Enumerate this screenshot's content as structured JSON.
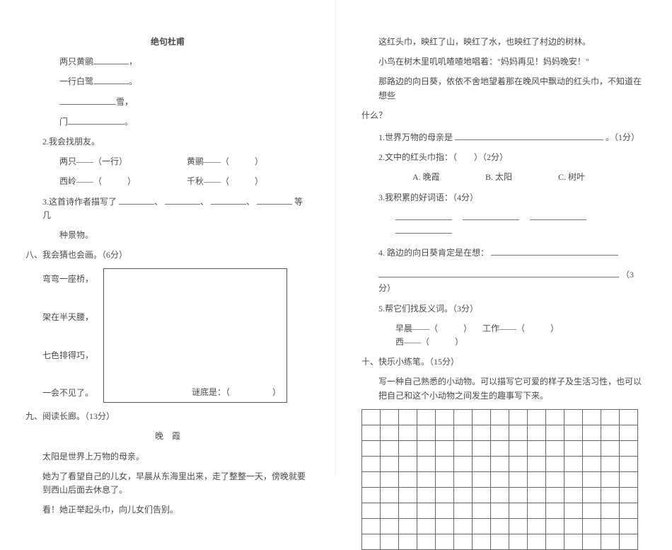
{
  "left": {
    "poem_title": "绝句杜甫",
    "poem_l1a": "两只黄鹂",
    "poem_l1b": "，",
    "poem_l2a": "一行白鹭",
    "poem_l2b": "。",
    "poem_l3b": "雪，",
    "poem_l4a": "门",
    "poem_l4b": "。",
    "q2_title": "2.我会找朋友。",
    "pair1a": "两只——（一行）",
    "pair1b": "黄鹂——（　　　）",
    "pair2a": "西岭——（　　　）",
    "pair2b": "千秋——（　　　）",
    "q3a": "3.这首诗作者描写了",
    "q3b": "等几",
    "q3c": "种景物。",
    "s8_title": "八、我会猜也会画。（6分）",
    "s8_l1": "弯弯一座桥，",
    "s8_l2": "架在半天腰，",
    "s8_l3": "七色排得巧，",
    "s8_l4": "一会不见了。",
    "s8_answer": "谜底是：（　　　　　）",
    "s9_title": "九、阅读长廊。（13分）",
    "s9_heading": "晚　霞",
    "s9_p1": "太阳是世界上万物的母亲。",
    "s9_p2": "她为了看望自己的儿女，早晨从东海里出来，走了整整一天，傍晚就要到西山后面去休息了。",
    "s9_p3": "看！她正举起头巾，向儿女们告别。"
  },
  "right": {
    "p1": "这红头巾，映红了山，映红了水，也映红了村边的树林。",
    "p2": "小鸟在树木里叽叽喳喳地唱着：\"妈妈再见！妈妈晚安！\"",
    "p3a": "那路边的向日葵，依依不舍地望着那在晚风中飘动的红头巾，不知道在想些",
    "p3b": "什么？",
    "q1a": "1.世界万物的母亲是",
    "q1b": "。（1分）",
    "q2": "2.文中的红头巾指：（　　）（2分）",
    "opt_a": "A. 晚霞",
    "opt_b": "B. 太阳",
    "opt_c": "C. 树叶",
    "q3": "3.我积累的好词语：（4分）",
    "q4a": "4. 路边的向日葵肯定是在想：",
    "q4b": "（3分）",
    "q5": "5.帮它们找反义词。（3分）",
    "ant1": "早晨——（　　　）",
    "ant2": "工作——（　　　）",
    "ant3": "西——（　　　）",
    "s10_title": "十、快乐小练笔。（15分）",
    "s10_p": "写一种自己熟悉的小动物。可以描写它可爱的样子及生活习性，也可以把自己和这个小动物之间发生的趣事写下来。",
    "grid": {
      "cols": 15,
      "rows": 9
    }
  }
}
